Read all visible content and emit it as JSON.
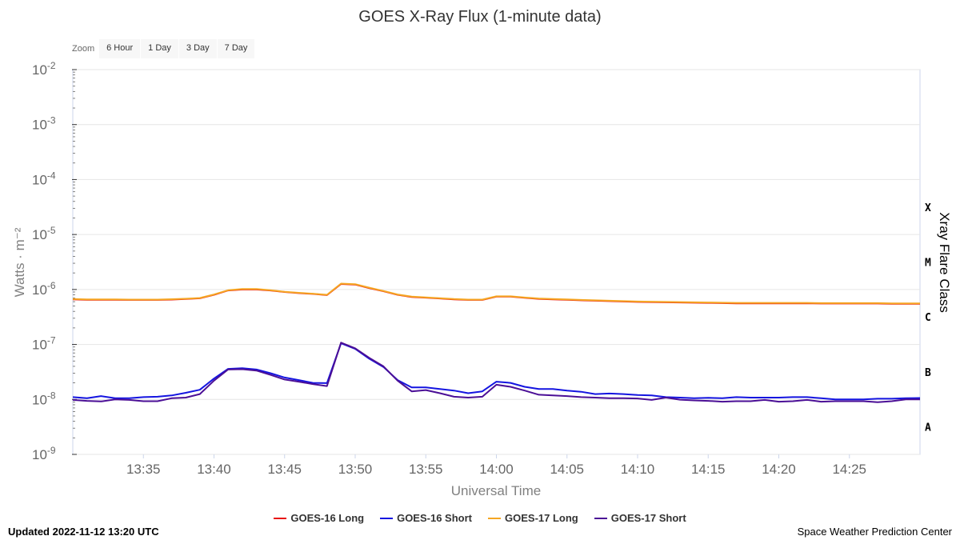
{
  "zoom": {
    "label": "Zoom",
    "buttons": [
      "6 Hour",
      "1 Day",
      "3 Day",
      "7 Day"
    ]
  },
  "footer": {
    "updated": "Updated 2022-11-12 13:20 UTC",
    "credit": "Space Weather Prediction Center"
  },
  "chart_data": {
    "type": "line",
    "title": "GOES X-Ray Flux (1-minute data)",
    "xlabel": "Universal Time",
    "ylabel": "Watts · m⁻²",
    "y2label": "Xray Flare Class",
    "y_scale": "log",
    "ylim_exponent": [
      -9,
      -2
    ],
    "y_ticks": [
      {
        "base": "10",
        "exp": "-2"
      },
      {
        "base": "10",
        "exp": "-3"
      },
      {
        "base": "10",
        "exp": "-4"
      },
      {
        "base": "10",
        "exp": "-5"
      },
      {
        "base": "10",
        "exp": "-6"
      },
      {
        "base": "10",
        "exp": "-7"
      },
      {
        "base": "10",
        "exp": "-8"
      },
      {
        "base": "10",
        "exp": "-9"
      }
    ],
    "flare_classes": [
      {
        "label": "X",
        "exp": -4
      },
      {
        "label": "M",
        "exp": -5
      },
      {
        "label": "C",
        "exp": -6
      },
      {
        "label": "B",
        "exp": -7
      },
      {
        "label": "A",
        "exp": -8
      }
    ],
    "x_range": [
      "13:30",
      "14:30"
    ],
    "x_ticks": [
      "13:35",
      "13:40",
      "13:45",
      "13:50",
      "13:55",
      "14:00",
      "14:05",
      "14:10",
      "14:15",
      "14:20",
      "14:25"
    ],
    "x": [
      "13:30",
      "13:31",
      "13:32",
      "13:33",
      "13:34",
      "13:35",
      "13:36",
      "13:37",
      "13:38",
      "13:39",
      "13:40",
      "13:41",
      "13:42",
      "13:43",
      "13:44",
      "13:45",
      "13:46",
      "13:47",
      "13:48",
      "13:49",
      "13:50",
      "13:51",
      "13:52",
      "13:53",
      "13:54",
      "13:55",
      "13:56",
      "13:57",
      "13:58",
      "13:59",
      "14:00",
      "14:01",
      "14:02",
      "14:03",
      "14:04",
      "14:05",
      "14:06",
      "14:07",
      "14:08",
      "14:09",
      "14:10",
      "14:11",
      "14:12",
      "14:13",
      "14:14",
      "14:15",
      "14:16",
      "14:17",
      "14:18",
      "14:19",
      "14:20",
      "14:21",
      "14:22",
      "14:23",
      "14:24",
      "14:25",
      "14:26",
      "14:27",
      "14:28",
      "14:29",
      "14:30"
    ],
    "legend_position": "bottom",
    "series": [
      {
        "name": "GOES-16 Long",
        "color": "#e8140f",
        "values": [
          6.6e-07,
          6.5e-07,
          6.5e-07,
          6.5e-07,
          6.45e-07,
          6.45e-07,
          6.45e-07,
          6.55e-07,
          6.7e-07,
          6.9e-07,
          8e-07,
          9.6e-07,
          1e-06,
          1e-06,
          9.6e-07,
          9e-07,
          8.6e-07,
          8.3e-07,
          7.9e-07,
          1.26e-06,
          1.23e-06,
          1.06e-06,
          9.3e-07,
          8e-07,
          7.3e-07,
          7.1e-07,
          6.85e-07,
          6.6e-07,
          6.45e-07,
          6.45e-07,
          7.4e-07,
          7.4e-07,
          7.05e-07,
          6.75e-07,
          6.6e-07,
          6.5e-07,
          6.35e-07,
          6.25e-07,
          6.15e-07,
          6.05e-07,
          5.95e-07,
          5.9e-07,
          5.85e-07,
          5.8e-07,
          5.75e-07,
          5.7e-07,
          5.65e-07,
          5.6e-07,
          5.6e-07,
          5.6e-07,
          5.6e-07,
          5.6e-07,
          5.6e-07,
          5.55e-07,
          5.55e-07,
          5.55e-07,
          5.55e-07,
          5.55e-07,
          5.5e-07,
          5.5e-07,
          5.5e-07
        ]
      },
      {
        "name": "GOES-16 Short",
        "color": "#1414e0",
        "values": [
          1.1e-08,
          1.05e-08,
          1.15e-08,
          1.05e-08,
          1.05e-08,
          1.1e-08,
          1.12e-08,
          1.18e-08,
          1.32e-08,
          1.5e-08,
          2.4e-08,
          3.6e-08,
          3.7e-08,
          3.5e-08,
          3e-08,
          2.5e-08,
          2.25e-08,
          2e-08,
          1.98e-08,
          1.05e-07,
          8.3e-08,
          5.5e-08,
          3.9e-08,
          2.25e-08,
          1.65e-08,
          1.65e-08,
          1.55e-08,
          1.45e-08,
          1.3e-08,
          1.4e-08,
          2.1e-08,
          2e-08,
          1.7e-08,
          1.55e-08,
          1.55e-08,
          1.45e-08,
          1.38e-08,
          1.25e-08,
          1.28e-08,
          1.25e-08,
          1.2e-08,
          1.18e-08,
          1.1e-08,
          1.08e-08,
          1.05e-08,
          1.07e-08,
          1.05e-08,
          1.1e-08,
          1.08e-08,
          1.08e-08,
          1.08e-08,
          1.1e-08,
          1.1e-08,
          1.05e-08,
          1e-08,
          1e-08,
          1e-08,
          1.03e-08,
          1.03e-08,
          1.05e-08,
          1.06e-08
        ]
      },
      {
        "name": "GOES-17 Long",
        "color": "#f5a623",
        "values": [
          6.7e-07,
          6.6e-07,
          6.6e-07,
          6.6e-07,
          6.55e-07,
          6.55e-07,
          6.55e-07,
          6.65e-07,
          6.8e-07,
          7e-07,
          8.1e-07,
          9.7e-07,
          1.02e-06,
          1.02e-06,
          9.7e-07,
          9.1e-07,
          8.7e-07,
          8.4e-07,
          8e-07,
          1.28e-06,
          1.25e-06,
          1.08e-06,
          9.4e-07,
          8.1e-07,
          7.4e-07,
          7.2e-07,
          6.95e-07,
          6.7e-07,
          6.55e-07,
          6.55e-07,
          7.5e-07,
          7.5e-07,
          7.15e-07,
          6.85e-07,
          6.7e-07,
          6.6e-07,
          6.45e-07,
          6.35e-07,
          6.25e-07,
          6.15e-07,
          6.05e-07,
          6e-07,
          5.95e-07,
          5.9e-07,
          5.85e-07,
          5.8e-07,
          5.75e-07,
          5.7e-07,
          5.7e-07,
          5.7e-07,
          5.7e-07,
          5.7e-07,
          5.7e-07,
          5.65e-07,
          5.65e-07,
          5.65e-07,
          5.65e-07,
          5.65e-07,
          5.6e-07,
          5.6e-07,
          5.6e-07
        ]
      },
      {
        "name": "GOES-17 Short",
        "color": "#4b0f96",
        "values": [
          9.8e-09,
          9.4e-09,
          9.2e-09,
          1e-08,
          9.8e-09,
          9.3e-09,
          9.3e-09,
          1.05e-08,
          1.08e-08,
          1.25e-08,
          2.2e-08,
          3.5e-08,
          3.55e-08,
          3.35e-08,
          2.8e-08,
          2.3e-08,
          2.1e-08,
          1.9e-08,
          1.75e-08,
          1.08e-07,
          8.5e-08,
          5.7e-08,
          4e-08,
          2.2e-08,
          1.4e-08,
          1.48e-08,
          1.3e-08,
          1.12e-08,
          1.08e-08,
          1.12e-08,
          1.85e-08,
          1.7e-08,
          1.45e-08,
          1.22e-08,
          1.18e-08,
          1.15e-08,
          1.1e-08,
          1.08e-08,
          1.05e-08,
          1.05e-08,
          1.04e-08,
          9.8e-09,
          1.08e-08,
          9.9e-09,
          9.6e-09,
          9.4e-09,
          9.1e-09,
          9.3e-09,
          9.3e-09,
          9.8e-09,
          9.1e-09,
          9.3e-09,
          9.8e-09,
          9.1e-09,
          9.3e-09,
          9.3e-09,
          9.3e-09,
          8.9e-09,
          9.3e-09,
          1e-08,
          1e-08
        ]
      }
    ]
  }
}
